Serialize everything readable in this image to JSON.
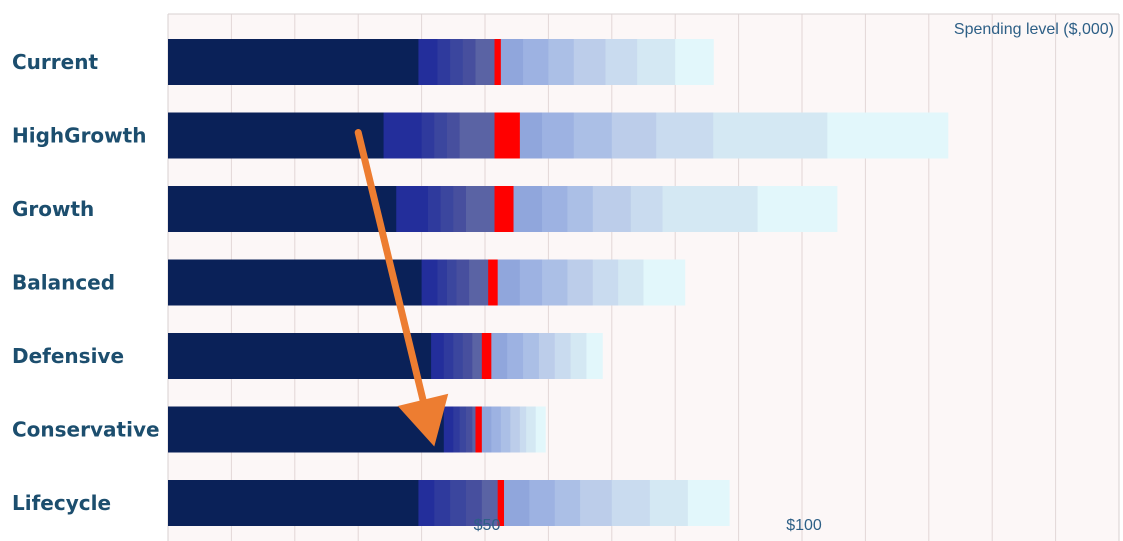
{
  "chart_data": {
    "type": "bar",
    "orientation": "horizontal",
    "stacked": true,
    "axis_title": "Spending level ($,000)",
    "xlim": [
      0,
      150
    ],
    "x_ticks": [
      {
        "value": 50,
        "label": "$50"
      },
      {
        "value": 100,
        "label": "$100"
      }
    ],
    "grid": true,
    "categories": [
      "Current",
      "HighGrowth",
      "Growth",
      "Balanced",
      "Defensive",
      "Conservative",
      "Lifecycle"
    ],
    "segment_colors": [
      "#0a2158",
      "#232e9b",
      "#2f3a9d",
      "#3b469e",
      "#474f9e",
      "#5a63a4",
      "#ff0000",
      "#90a6dc",
      "#9db2e2",
      "#abbfe6",
      "#bccdea",
      "#c9dbef",
      "#d4e8f3",
      "#e2f7fb"
    ],
    "segment_boundaries": [
      [
        0,
        39.5,
        42.5,
        44.5,
        46.5,
        48.5,
        51.5,
        52.5,
        56,
        60,
        64,
        69,
        74,
        80,
        86
      ],
      [
        0,
        34,
        40,
        42,
        44,
        46,
        51.5,
        55.5,
        59,
        64,
        70,
        77,
        86,
        104,
        123
      ],
      [
        0,
        36,
        41,
        43,
        45,
        47,
        51.5,
        54.5,
        59,
        63,
        67,
        73,
        78,
        93,
        105.5
      ],
      [
        0,
        40,
        42.5,
        44,
        45.5,
        47.5,
        50.5,
        52,
        55.5,
        59,
        63,
        67,
        71,
        75,
        81.5
      ],
      [
        0,
        41.5,
        43.5,
        45,
        46.5,
        48,
        49.5,
        51,
        53.5,
        56,
        58.5,
        61,
        63.5,
        66,
        68.5
      ],
      [
        0,
        43.5,
        45,
        46,
        47,
        48,
        48.5,
        49.5,
        51,
        52.5,
        54,
        55.5,
        56.5,
        58,
        59.5
      ],
      [
        0,
        39.5,
        42,
        44.5,
        47,
        49.5,
        52,
        53,
        57,
        61,
        65,
        70,
        76,
        82,
        88.5
      ]
    ],
    "annotation": {
      "type": "arrow",
      "color": "#ed7d31",
      "from": [
        30,
        "HighGrowth"
      ],
      "to": [
        42,
        "Conservative"
      ]
    }
  }
}
